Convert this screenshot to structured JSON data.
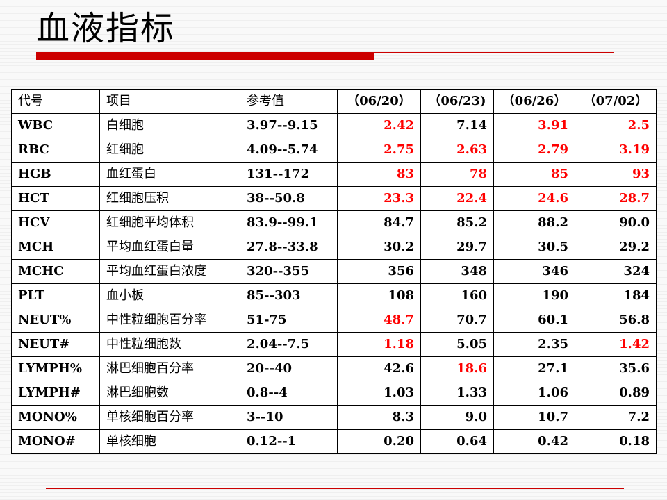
{
  "title": "血液指标",
  "table": {
    "headers": [
      "代号",
      "项目",
      "参考值",
      "（06/20）",
      "（06/23)",
      "（06/26）",
      "（07/02）"
    ],
    "rows": [
      {
        "code": "WBC",
        "item": "白细胞",
        "ref": "3.97--9.15",
        "values": [
          "2.42",
          "7.14",
          "3.91",
          "2.5"
        ],
        "flags": [
          true,
          false,
          true,
          true
        ]
      },
      {
        "code": "RBC",
        "item": "红细胞",
        "ref": "4.09--5.74",
        "values": [
          "2.75",
          "2.63",
          "2.79",
          "3.19"
        ],
        "flags": [
          true,
          true,
          true,
          true
        ]
      },
      {
        "code": "HGB",
        "item": "血红蛋白",
        "ref": "131--172",
        "values": [
          "83",
          "78",
          "85",
          "93"
        ],
        "flags": [
          true,
          true,
          true,
          true
        ]
      },
      {
        "code": "HCT",
        "item": "红细胞压积",
        "ref": "38--50.8",
        "values": [
          "23.3",
          "22.4",
          "24.6",
          "28.7"
        ],
        "flags": [
          true,
          true,
          true,
          true
        ]
      },
      {
        "code": "HCV",
        "item": "红细胞平均体积",
        "ref": "83.9--99.1",
        "values": [
          "84.7",
          "85.2",
          "88.2",
          "90.0"
        ],
        "flags": [
          false,
          false,
          false,
          false
        ]
      },
      {
        "code": "MCH",
        "item": "平均血红蛋白量",
        "ref": "27.8--33.8",
        "values": [
          "30.2",
          "29.7",
          "30.5",
          "29.2"
        ],
        "flags": [
          false,
          false,
          false,
          false
        ]
      },
      {
        "code": "MCHC",
        "item": "平均血红蛋白浓度",
        "ref": "320--355",
        "values": [
          "356",
          "348",
          "346",
          "324"
        ],
        "flags": [
          false,
          false,
          false,
          false
        ]
      },
      {
        "code": "PLT",
        "item": "血小板",
        "ref": "85--303",
        "values": [
          "108",
          "160",
          "190",
          "184"
        ],
        "flags": [
          false,
          false,
          false,
          false
        ]
      },
      {
        "code": "NEUT%",
        "item": "中性粒细胞百分率",
        "ref": "51-75",
        "values": [
          "48.7",
          "70.7",
          "60.1",
          "56.8"
        ],
        "flags": [
          true,
          false,
          false,
          false
        ]
      },
      {
        "code": "NEUT#",
        "item": "中性粒细胞数",
        "ref": "2.04--7.5",
        "values": [
          "1.18",
          "5.05",
          "2.35",
          "1.42"
        ],
        "flags": [
          true,
          false,
          false,
          true
        ]
      },
      {
        "code": "LYMPH%",
        "item": "淋巴细胞百分率",
        "ref": "20--40",
        "values": [
          "42.6",
          "18.6",
          "27.1",
          "35.6"
        ],
        "flags": [
          false,
          true,
          false,
          false
        ]
      },
      {
        "code": "LYMPH#",
        "item": "淋巴细胞数",
        "ref": "0.8--4",
        "values": [
          "1.03",
          "1.33",
          "1.06",
          "0.89"
        ],
        "flags": [
          false,
          false,
          false,
          false
        ]
      },
      {
        "code": "MONO%",
        "item": "单核细胞百分率",
        "ref": "3--10",
        "values": [
          "8.3",
          "9.0",
          "10.7",
          "7.2"
        ],
        "flags": [
          false,
          false,
          false,
          false
        ]
      },
      {
        "code": "MONO#",
        "item": "单核细胞",
        "ref": "0.12--1",
        "values": [
          "0.20",
          "0.64",
          "0.42",
          "0.18"
        ],
        "flags": [
          false,
          false,
          false,
          false
        ]
      }
    ]
  },
  "colors": {
    "accent": "#cc0000",
    "flagged_value": "#ff0000",
    "normal_value": "#000000"
  }
}
